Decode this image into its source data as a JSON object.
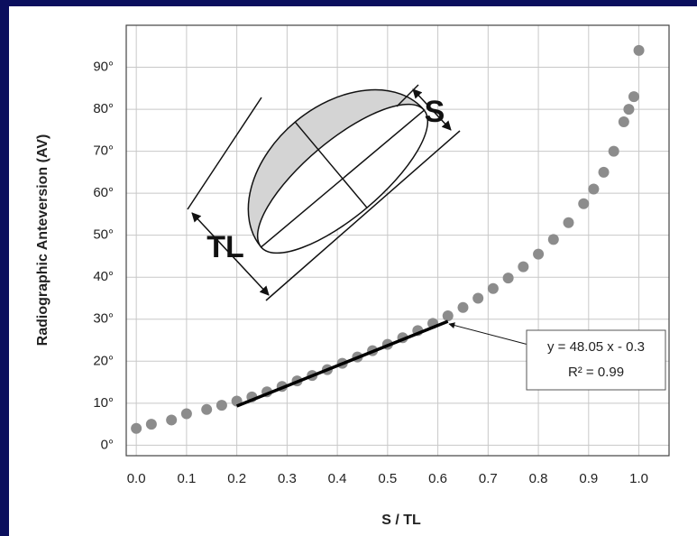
{
  "chart_data": {
    "type": "scatter",
    "x_label": "S / TL",
    "y_label": "Radiographic Anteversion  (AV)",
    "x": [
      0,
      0.03,
      0.07,
      0.1,
      0.14,
      0.17,
      0.2,
      0.23,
      0.26,
      0.29,
      0.32,
      0.35,
      0.38,
      0.41,
      0.44,
      0.47,
      0.5,
      0.53,
      0.56,
      0.59,
      0.62,
      0.65,
      0.68,
      0.71,
      0.74,
      0.77,
      0.8,
      0.83,
      0.86,
      0.89,
      0.91,
      0.93,
      0.95,
      0.97,
      0.98,
      0.99,
      1.0
    ],
    "values": [
      4,
      5,
      6,
      7.5,
      8.5,
      9.5,
      10.5,
      11.5,
      12.7,
      14,
      15.3,
      16.6,
      18,
      19.5,
      21,
      22.5,
      24,
      25.6,
      27.3,
      29,
      30.8,
      32.8,
      35,
      37.3,
      39.8,
      42.5,
      45.5,
      49,
      53,
      57.5,
      61,
      65,
      70,
      77,
      80,
      83,
      94
    ],
    "color": "#8c8c8c",
    "xlim": [
      -0.02,
      1.06
    ],
    "ylim": [
      -2.5,
      100
    ],
    "xticks": [
      {
        "value": 0,
        "label": "0.0"
      },
      0.1,
      0.2,
      0.3,
      0.4,
      0.5,
      0.6,
      0.7,
      0.8,
      0.9,
      {
        "value": 1,
        "label": "1.0"
      }
    ],
    "yticks": [
      {
        "value": 0,
        "label": "0°"
      },
      {
        "value": 10,
        "label": "10°"
      },
      {
        "value": 20,
        "label": "20°"
      },
      {
        "value": 30,
        "label": "30°"
      },
      {
        "value": 40,
        "label": "40°"
      },
      {
        "value": 50,
        "label": "50°"
      },
      {
        "value": 60,
        "label": "60°"
      },
      {
        "value": 70,
        "label": "70°"
      },
      {
        "value": 80,
        "label": "80°"
      },
      {
        "value": 90,
        "label": "90°"
      }
    ],
    "grid": true,
    "fit": {
      "slope": 48.05,
      "intercept": -0.3,
      "x_range": [
        0.2,
        0.62
      ],
      "color": "#000000",
      "equation": "y = 48.05 x - 0.3",
      "r_squared": "R² = 0.99"
    },
    "annotations": {
      "s": "S",
      "tl": "TL"
    }
  }
}
